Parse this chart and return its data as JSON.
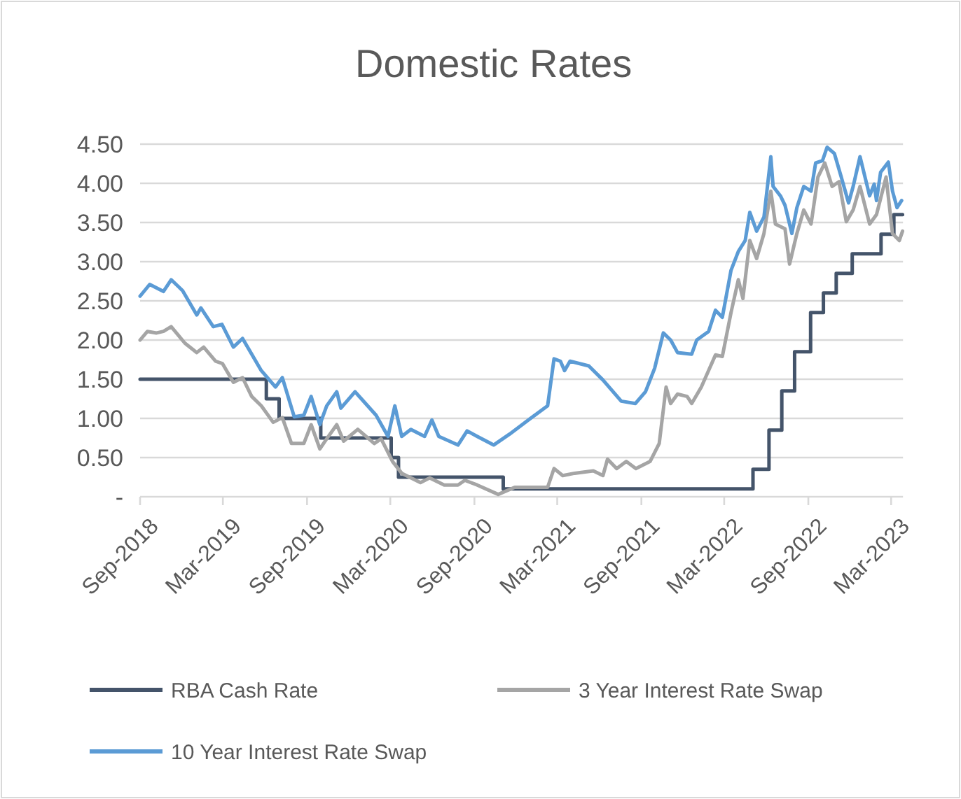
{
  "chart_data": {
    "type": "line",
    "title": "Domestic Rates",
    "xlim": [
      "2018-09-01",
      "2023-03-27"
    ],
    "xticks": [
      {
        "value": "2018-09-01",
        "label": "Sep-2018"
      },
      {
        "value": "2019-03-01",
        "label": "Mar-2019"
      },
      {
        "value": "2019-09-01",
        "label": "Sep-2019"
      },
      {
        "value": "2020-03-01",
        "label": "Mar-2020"
      },
      {
        "value": "2020-09-01",
        "label": "Sep-2020"
      },
      {
        "value": "2021-03-01",
        "label": "Mar-2021"
      },
      {
        "value": "2021-09-01",
        "label": "Sep-2021"
      },
      {
        "value": "2022-03-01",
        "label": "Mar-2022"
      },
      {
        "value": "2022-09-01",
        "label": "Sep-2022"
      },
      {
        "value": "2023-03-01",
        "label": "Mar-2023"
      }
    ],
    "ylim": [
      0,
      4.5
    ],
    "yticks": [
      {
        "value": 0,
        "label": "-"
      },
      {
        "value": 0.5,
        "label": "0.50"
      },
      {
        "value": 1,
        "label": "1.00"
      },
      {
        "value": 1.5,
        "label": "1.50"
      },
      {
        "value": 2,
        "label": "2.00"
      },
      {
        "value": 2.5,
        "label": "2.50"
      },
      {
        "value": 3,
        "label": "3.00"
      },
      {
        "value": 3.5,
        "label": "3.50"
      },
      {
        "value": 4,
        "label": "4.00"
      },
      {
        "value": 4.5,
        "label": "4.50"
      }
    ],
    "grid": "y",
    "legend": "bottom",
    "line_style": "solid",
    "series": [
      {
        "name": "RBA Cash Rate",
        "type": "step",
        "color": "#44546a",
        "x": [
          "2018-09-01",
          "2019-06-04",
          "2019-07-02",
          "2019-10-01",
          "2020-03-03",
          "2020-03-19",
          "2020-11-03",
          "2022-05-03",
          "2022-06-07",
          "2022-07-05",
          "2022-08-02",
          "2022-09-06",
          "2022-10-04",
          "2022-11-01",
          "2022-12-06",
          "2023-02-07",
          "2023-03-07",
          "2023-03-26"
        ],
        "values": [
          1.5,
          1.25,
          1.0,
          0.75,
          0.5,
          0.25,
          0.1,
          0.35,
          0.85,
          1.35,
          1.85,
          2.35,
          2.6,
          2.85,
          3.1,
          3.35,
          3.6,
          3.6
        ]
      },
      {
        "name": "3 Year Interest Rate Swap",
        "color": "#a5a5a5",
        "x": [
          "2018-09-01",
          "2018-09-17",
          "2018-10-07",
          "2018-10-22",
          "2018-11-08",
          "2018-12-08",
          "2019-01-03",
          "2019-01-18",
          "2019-02-13",
          "2019-02-28",
          "2019-03-24",
          "2019-04-13",
          "2019-05-03",
          "2019-05-24",
          "2019-06-19",
          "2019-07-09",
          "2019-07-29",
          "2019-08-25",
          "2019-09-10",
          "2019-09-29",
          "2019-10-14",
          "2019-11-05",
          "2019-11-20",
          "2019-12-21",
          "2020-01-26",
          "2020-02-10",
          "2020-03-06",
          "2020-03-26",
          "2020-05-06",
          "2020-05-26",
          "2020-06-27",
          "2020-07-27",
          "2020-08-11",
          "2020-09-07",
          "2020-10-23",
          "2020-11-28",
          "2021-02-08",
          "2021-02-22",
          "2021-03-13",
          "2021-04-08",
          "2021-05-19",
          "2021-06-09",
          "2021-06-19",
          "2021-07-09",
          "2021-07-30",
          "2021-08-20",
          "2021-09-20",
          "2021-10-10",
          "2021-10-25",
          "2021-11-04",
          "2021-11-19",
          "2021-12-10",
          "2021-12-20",
          "2022-01-10",
          "2022-02-10",
          "2022-02-25",
          "2022-03-16",
          "2022-04-01",
          "2022-04-11",
          "2022-04-26",
          "2022-05-11",
          "2022-05-27",
          "2022-06-11",
          "2022-06-21",
          "2022-07-12",
          "2022-07-22",
          "2022-08-07",
          "2022-08-22",
          "2022-09-07",
          "2022-09-22",
          "2022-10-07",
          "2022-10-23",
          "2022-11-07",
          "2022-11-23",
          "2022-12-08",
          "2022-12-23",
          "2023-01-13",
          "2023-01-28",
          "2023-02-18",
          "2023-03-04",
          "2023-03-19",
          "2023-03-26"
        ],
        "values": [
          2.0,
          2.11,
          2.09,
          2.11,
          2.17,
          1.96,
          1.84,
          1.91,
          1.73,
          1.7,
          1.46,
          1.52,
          1.28,
          1.16,
          0.95,
          1.01,
          0.68,
          0.68,
          0.92,
          0.61,
          0.74,
          0.92,
          0.71,
          0.86,
          0.68,
          0.74,
          0.45,
          0.3,
          0.18,
          0.24,
          0.15,
          0.15,
          0.21,
          0.15,
          0.03,
          0.12,
          0.12,
          0.36,
          0.27,
          0.3,
          0.33,
          0.27,
          0.48,
          0.36,
          0.45,
          0.36,
          0.45,
          0.68,
          1.4,
          1.19,
          1.31,
          1.28,
          1.19,
          1.4,
          1.81,
          1.79,
          2.35,
          2.77,
          2.53,
          3.27,
          3.04,
          3.36,
          3.9,
          3.48,
          3.42,
          2.97,
          3.36,
          3.66,
          3.48,
          4.08,
          4.26,
          3.96,
          4.02,
          3.51,
          3.66,
          3.96,
          3.48,
          3.6,
          4.08,
          3.36,
          3.27,
          3.39
        ]
      },
      {
        "name": "10 Year Interest Rate Swap",
        "color": "#5b9bd5",
        "x": [
          "2018-09-01",
          "2018-09-22",
          "2018-10-22",
          "2018-11-08",
          "2018-12-03",
          "2019-01-03",
          "2019-01-12",
          "2019-02-08",
          "2019-02-27",
          "2019-03-24",
          "2019-04-13",
          "2019-05-24",
          "2019-06-24",
          "2019-07-09",
          "2019-08-04",
          "2019-08-25",
          "2019-09-10",
          "2019-09-29",
          "2019-10-14",
          "2019-11-05",
          "2019-11-14",
          "2019-12-15",
          "2020-01-30",
          "2020-02-25",
          "2020-03-11",
          "2020-03-26",
          "2020-04-15",
          "2020-05-15",
          "2020-05-31",
          "2020-06-15",
          "2020-07-27",
          "2020-08-16",
          "2020-09-07",
          "2020-10-13",
          "2020-11-17",
          "2020-12-28",
          "2021-02-08",
          "2021-02-22",
          "2021-03-08",
          "2021-03-17",
          "2021-03-29",
          "2021-05-09",
          "2021-06-09",
          "2021-07-19",
          "2021-08-19",
          "2021-09-10",
          "2021-09-30",
          "2021-10-19",
          "2021-11-04",
          "2021-11-19",
          "2021-12-20",
          "2021-12-31",
          "2022-01-26",
          "2022-02-10",
          "2022-02-25",
          "2022-03-16",
          "2022-04-01",
          "2022-04-16",
          "2022-04-26",
          "2022-05-11",
          "2022-05-27",
          "2022-06-11",
          "2022-06-16",
          "2022-07-02",
          "2022-07-12",
          "2022-07-27",
          "2022-08-07",
          "2022-08-22",
          "2022-09-07",
          "2022-09-17",
          "2022-10-02",
          "2022-10-12",
          "2022-10-28",
          "2022-11-12",
          "2022-11-28",
          "2022-12-08",
          "2022-12-23",
          "2023-01-13",
          "2023-01-23",
          "2023-01-28",
          "2023-02-06",
          "2023-02-23",
          "2023-03-04",
          "2023-03-14",
          "2023-03-24"
        ],
        "values": [
          2.56,
          2.71,
          2.62,
          2.77,
          2.63,
          2.32,
          2.41,
          2.17,
          2.2,
          1.91,
          2.02,
          1.61,
          1.4,
          1.52,
          1.02,
          1.04,
          1.28,
          0.92,
          1.16,
          1.34,
          1.13,
          1.34,
          1.04,
          0.77,
          1.16,
          0.77,
          0.86,
          0.77,
          0.98,
          0.77,
          0.66,
          0.84,
          0.77,
          0.66,
          0.8,
          0.98,
          1.16,
          1.76,
          1.73,
          1.61,
          1.73,
          1.67,
          1.49,
          1.22,
          1.19,
          1.34,
          1.64,
          2.09,
          2.0,
          1.84,
          1.82,
          2.0,
          2.11,
          2.38,
          2.29,
          2.89,
          3.13,
          3.27,
          3.63,
          3.39,
          3.57,
          4.34,
          3.96,
          3.84,
          3.72,
          3.36,
          3.69,
          3.96,
          3.9,
          4.26,
          4.29,
          4.46,
          4.38,
          4.08,
          3.75,
          3.96,
          4.34,
          3.84,
          3.99,
          3.78,
          4.14,
          4.27,
          3.9,
          3.69,
          3.78
        ]
      }
    ]
  }
}
